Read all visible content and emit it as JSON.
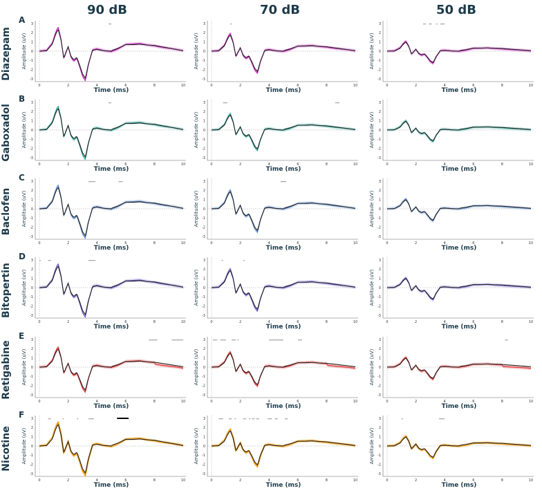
{
  "columns": [
    "90 dB",
    "70 dB",
    "50 dB"
  ],
  "rows": [
    {
      "letter": "A",
      "drug": "Diazepam",
      "color": "#c21fb8"
    },
    {
      "letter": "B",
      "drug": "Gaboxadol",
      "color": "#2aa395"
    },
    {
      "letter": "C",
      "drug": "Baclofen",
      "color": "#5a86c8"
    },
    {
      "letter": "D",
      "drug": "Bitopertin",
      "color": "#6a56c8"
    },
    {
      "letter": "E",
      "drug": "Retigabine",
      "color": "#e03030"
    },
    {
      "letter": "F",
      "drug": "Nicotine",
      "color": "#f0a020"
    }
  ],
  "chart_data": {
    "type": "line",
    "layout": "6x3 small multiples",
    "xlabel": "Time (ms)",
    "ylabel": "Amplitude (uV)",
    "xlim": [
      0,
      10
    ],
    "ylim": [
      -3.3,
      3.3
    ],
    "x_ticks": [
      0,
      2,
      4,
      6,
      8,
      10
    ],
    "y_ticks": [
      3,
      2,
      1,
      0,
      -1,
      -2,
      -3
    ],
    "baseline_color": "#222222",
    "waveform_x": [
      0,
      0.5,
      0.9,
      1.1,
      1.3,
      1.5,
      1.7,
      1.8,
      2.0,
      2.2,
      2.4,
      2.6,
      2.8,
      3.0,
      3.2,
      3.4,
      3.7,
      4.0,
      4.5,
      5.0,
      5.5,
      6.0,
      6.5,
      7.0,
      7.5,
      8.0,
      8.5,
      9.0,
      9.5,
      10.0
    ],
    "waveform_shape": [
      0,
      0.05,
      0.8,
      1.8,
      2.5,
      1.3,
      -0.8,
      -0.3,
      0.5,
      -0.6,
      -1.0,
      -0.7,
      -1.6,
      -2.6,
      -3.1,
      -1.5,
      0.1,
      0.2,
      0.05,
      0.0,
      0.3,
      0.7,
      0.7,
      0.75,
      0.65,
      0.6,
      0.45,
      0.3,
      0.15,
      0.0
    ],
    "panels": [
      {
        "row": 0,
        "col": 0,
        "scale": 1.0,
        "bars": [
          [
            4.8,
            5.0
          ]
        ]
      },
      {
        "row": 0,
        "col": 1,
        "scale": 0.75,
        "bars": [
          [
            1.3,
            1.4
          ]
        ]
      },
      {
        "row": 0,
        "col": 2,
        "scale": 0.42,
        "bars": [
          [
            2.5,
            2.7
          ],
          [
            2.9,
            3.1
          ],
          [
            3.4,
            3.5
          ],
          [
            3.7,
            4.0
          ]
        ]
      },
      {
        "row": 1,
        "col": 0,
        "scale": 1.0,
        "bars": [
          [
            4.8,
            5.0
          ]
        ]
      },
      {
        "row": 1,
        "col": 1,
        "scale": 0.7,
        "bars": [
          [
            0.8,
            1.1
          ],
          [
            8.6,
            8.9
          ]
        ]
      },
      {
        "row": 1,
        "col": 2,
        "scale": 0.4,
        "bars": []
      },
      {
        "row": 2,
        "col": 0,
        "scale": 1.0,
        "bars": [
          [
            3.4,
            3.9
          ],
          [
            5.5,
            5.8
          ]
        ]
      },
      {
        "row": 2,
        "col": 1,
        "scale": 0.8,
        "bars": [
          [
            4.8,
            5.2
          ]
        ]
      },
      {
        "row": 2,
        "col": 2,
        "scale": 0.42,
        "bars": []
      },
      {
        "row": 3,
        "col": 0,
        "scale": 1.0,
        "bars": [
          [
            0.0,
            0.1
          ],
          [
            0.6,
            0.8
          ],
          [
            3.4,
            3.9
          ]
        ]
      },
      {
        "row": 3,
        "col": 1,
        "scale": 0.8,
        "bars": [
          [
            0.7,
            0.8
          ],
          [
            2.2,
            2.3
          ]
        ]
      },
      {
        "row": 3,
        "col": 2,
        "scale": 0.42,
        "bars": []
      },
      {
        "row": 4,
        "col": 0,
        "scale": 0.85,
        "bars": [
          [
            7.6,
            8.2
          ],
          [
            9.2,
            10.0
          ]
        ]
      },
      {
        "row": 4,
        "col": 1,
        "scale": 0.65,
        "bars": [
          [
            0.1,
            0.4
          ],
          [
            0.6,
            1.0
          ],
          [
            1.4,
            1.7
          ],
          [
            1.8,
            1.9
          ],
          [
            4.0,
            5.0
          ],
          [
            6.0,
            6.3
          ]
        ]
      },
      {
        "row": 4,
        "col": 2,
        "scale": 0.42,
        "bars": [
          [
            8.2,
            8.4
          ]
        ]
      },
      {
        "row": 5,
        "col": 0,
        "scale": 1.0,
        "bars": [
          [
            0.6,
            0.8
          ],
          [
            1.6,
            1.7
          ],
          [
            2.6,
            2.7
          ],
          [
            3.4,
            3.8
          ]
        ],
        "black_bar": [
          5.4,
          6.2
        ]
      },
      {
        "row": 5,
        "col": 1,
        "scale": 0.7,
        "bars": [
          [
            0.5,
            0.8
          ],
          [
            1.2,
            1.4
          ],
          [
            1.6,
            1.7
          ],
          [
            2.2,
            2.4
          ],
          [
            2.6,
            2.7
          ],
          [
            2.8,
            3.0
          ],
          [
            3.1,
            3.3
          ],
          [
            3.9,
            4.2
          ],
          [
            4.4,
            4.6
          ],
          [
            5.1,
            5.3
          ]
        ]
      },
      {
        "row": 5,
        "col": 2,
        "scale": 0.42,
        "bars": [
          [
            1.0,
            1.1
          ],
          [
            3.6,
            4.0
          ]
        ]
      }
    ]
  }
}
